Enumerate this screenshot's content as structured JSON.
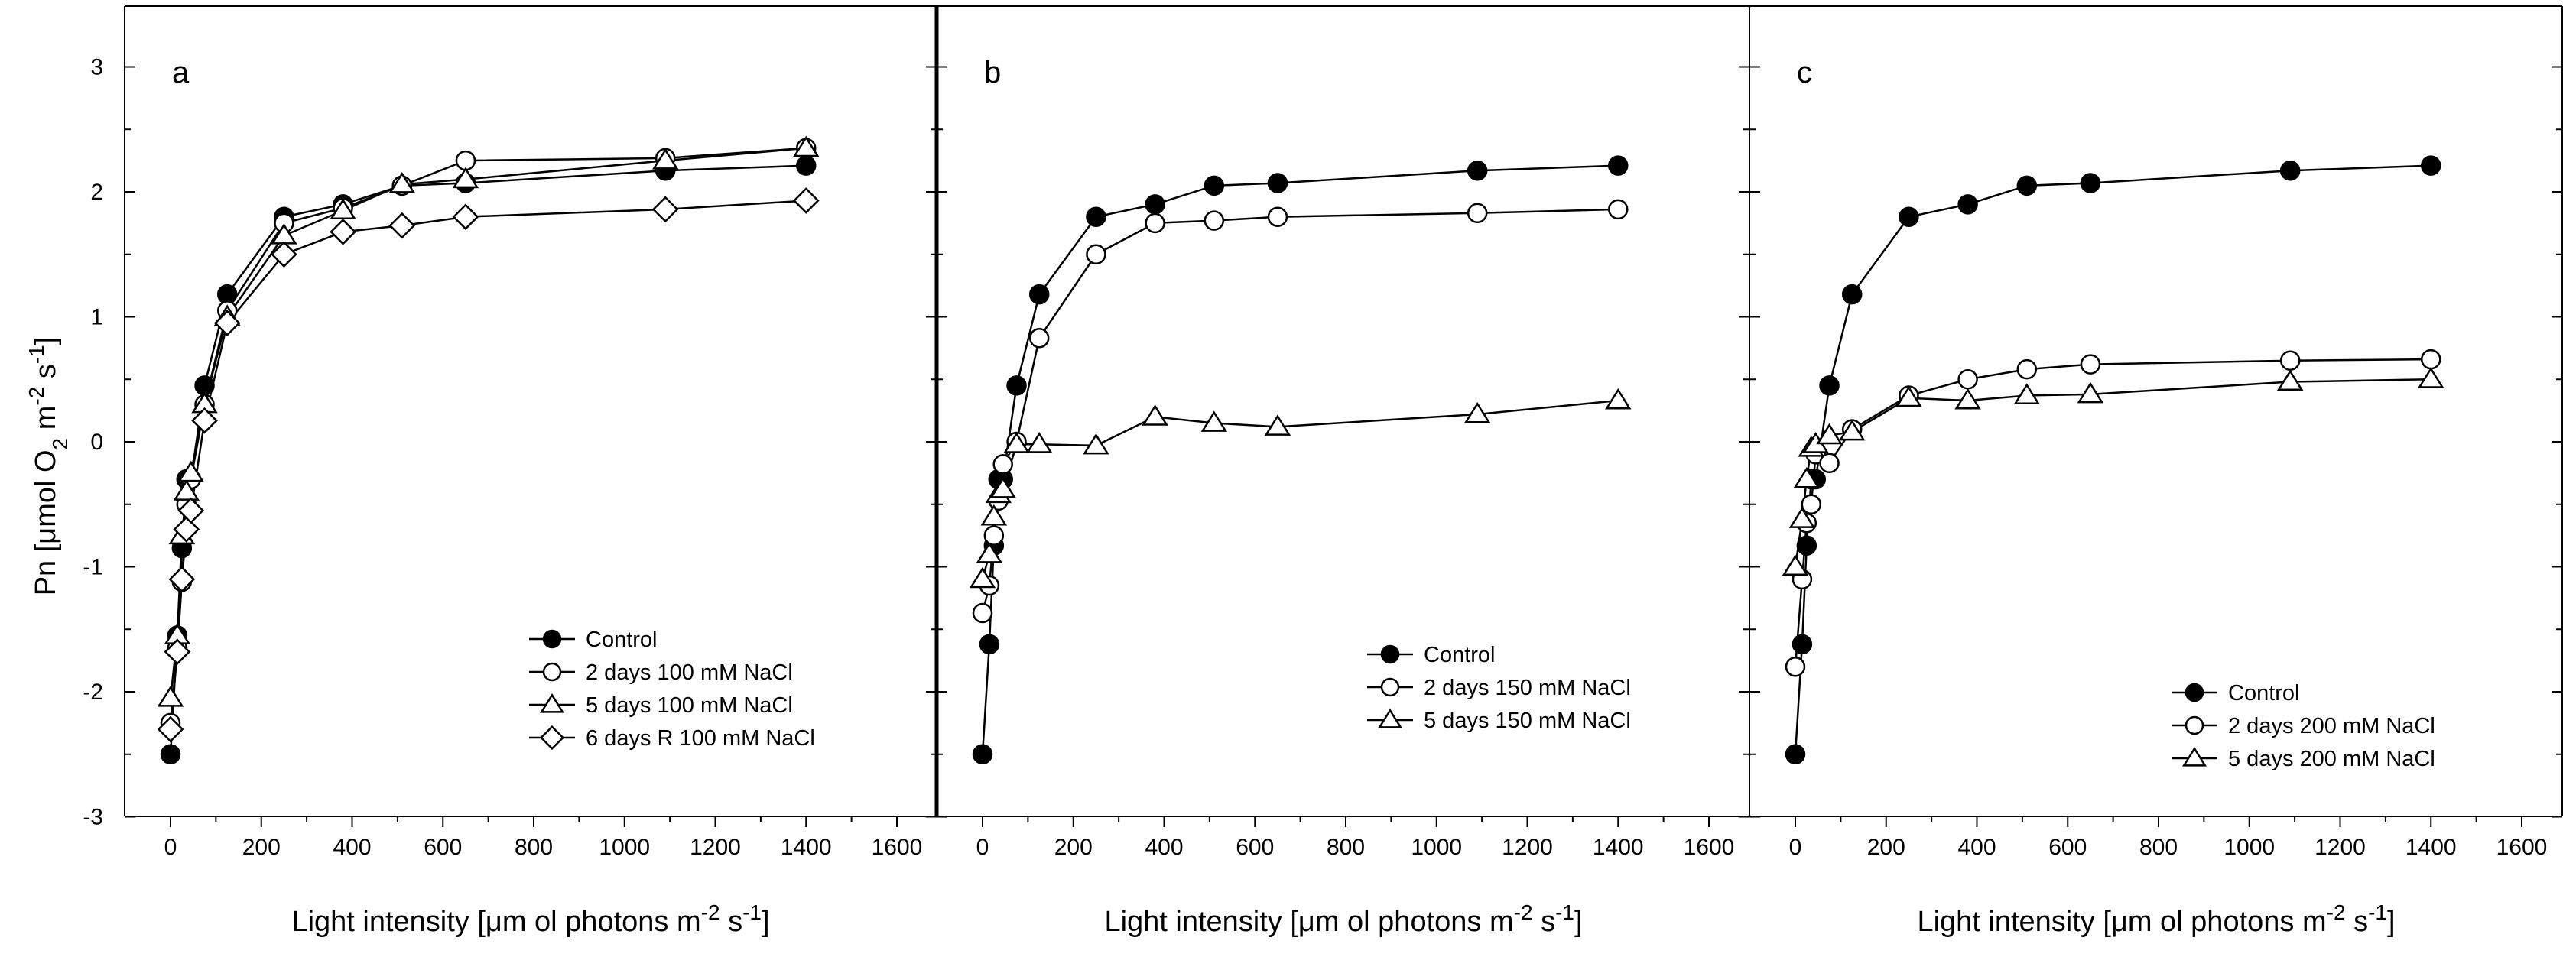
{
  "ylabel": {
    "prefix": "Pn [",
    "mu": "μ",
    "mid": "mol O",
    "sub": "2",
    "mid2": " m",
    "sup1": "-2",
    "mid3": " s",
    "sup2": "-1",
    "end": "]"
  },
  "xlabel": {
    "prefix": "Light intensity [",
    "mu": "μ",
    "mid": "m ol photons m",
    "sup1": "-2",
    "mid2": " s",
    "sup2": "-1",
    "end": "]"
  },
  "chart_data": [
    {
      "type": "line",
      "panel_label": "a",
      "x_ticks": [
        "0",
        "200",
        "400",
        "600",
        "800",
        "1000",
        "1200",
        "1400",
        "1600"
      ],
      "y_ticks": [
        "-3",
        "-2",
        "-1",
        "0",
        "1",
        "2",
        "3"
      ],
      "xlim": [
        -80,
        1680
      ],
      "ylim": [
        -3,
        3.35
      ],
      "legend_position": "bottom-right",
      "series": [
        {
          "name": "Control",
          "marker": "filled-circle",
          "x": [
            0,
            15,
            25,
            35,
            45,
            75,
            125,
            250,
            380,
            510,
            650,
            1090,
            1400
          ],
          "y": [
            -2.5,
            -1.55,
            -0.85,
            -0.3,
            -0.3,
            0.45,
            1.18,
            1.8,
            1.9,
            2.05,
            2.07,
            2.17,
            2.21
          ]
        },
        {
          "name": "2 days 100 mM NaCl",
          "marker": "open-circle",
          "x": [
            0,
            15,
            25,
            35,
            45,
            75,
            125,
            250,
            380,
            510,
            650,
            1090,
            1400
          ],
          "y": [
            -2.25,
            -1.65,
            -1.12,
            -0.5,
            -0.3,
            0.3,
            1.05,
            1.75,
            1.87,
            2.05,
            2.25,
            2.27,
            2.35
          ]
        },
        {
          "name": "5 days 100 mM NaCl",
          "marker": "open-triangle",
          "x": [
            0,
            15,
            25,
            35,
            45,
            75,
            125,
            250,
            380,
            510,
            650,
            1090,
            1400
          ],
          "y": [
            -2.05,
            -1.55,
            -0.75,
            -0.4,
            -0.25,
            0.3,
            1.0,
            1.65,
            1.85,
            2.06,
            2.1,
            2.25,
            2.35
          ]
        },
        {
          "name": "6 days R 100 mM NaCl",
          "marker": "open-diamond",
          "x": [
            0,
            15,
            25,
            35,
            45,
            75,
            125,
            250,
            380,
            510,
            650,
            1090,
            1400
          ],
          "y": [
            -2.3,
            -1.68,
            -1.1,
            -0.7,
            -0.55,
            0.17,
            0.95,
            1.5,
            1.68,
            1.73,
            1.8,
            1.86,
            1.93
          ]
        }
      ]
    },
    {
      "type": "line",
      "panel_label": "b",
      "x_ticks": [
        "0",
        "200",
        "400",
        "600",
        "800",
        "1000",
        "1200",
        "1400",
        "1600"
      ],
      "y_ticks": [],
      "xlim": [
        -80,
        1680
      ],
      "ylim": [
        -3,
        3.35
      ],
      "legend_position": "bottom-right",
      "series": [
        {
          "name": "Control",
          "marker": "filled-circle",
          "x": [
            0,
            15,
            25,
            35,
            45,
            75,
            125,
            250,
            380,
            510,
            650,
            1090,
            1400
          ],
          "y": [
            -2.5,
            -1.62,
            -0.83,
            -0.3,
            -0.3,
            0.45,
            1.18,
            1.8,
            1.9,
            2.05,
            2.07,
            2.17,
            2.21
          ]
        },
        {
          "name": "2 days 150 mM NaCl",
          "marker": "open-circle",
          "x": [
            0,
            15,
            25,
            35,
            45,
            75,
            125,
            250,
            380,
            510,
            650,
            1090,
            1400
          ],
          "y": [
            -1.37,
            -1.15,
            -0.75,
            -0.47,
            -0.18,
            0.0,
            0.83,
            1.5,
            1.75,
            1.77,
            1.8,
            1.83,
            1.86
          ]
        },
        {
          "name": "5 days 150 mM NaCl",
          "marker": "open-triangle",
          "x": [
            0,
            15,
            25,
            35,
            45,
            75,
            125,
            250,
            380,
            510,
            650,
            1090,
            1400
          ],
          "y": [
            -1.1,
            -0.9,
            -0.6,
            -0.42,
            -0.38,
            -0.02,
            -0.02,
            -0.03,
            0.2,
            0.15,
            0.12,
            0.22,
            0.33
          ]
        }
      ]
    },
    {
      "type": "line",
      "panel_label": "c",
      "x_ticks": [
        "0",
        "200",
        "400",
        "600",
        "800",
        "1000",
        "1200",
        "1400",
        "1600"
      ],
      "y_ticks": [],
      "xlim": [
        -80,
        1680
      ],
      "ylim": [
        -3,
        3.35
      ],
      "legend_position": "bottom-right",
      "series": [
        {
          "name": "Control",
          "marker": "filled-circle",
          "x": [
            0,
            15,
            25,
            35,
            45,
            75,
            125,
            250,
            380,
            510,
            650,
            1090,
            1400
          ],
          "y": [
            -2.5,
            -1.62,
            -0.83,
            -0.3,
            -0.3,
            0.45,
            1.18,
            1.8,
            1.9,
            2.05,
            2.07,
            2.17,
            2.21
          ]
        },
        {
          "name": "2 days 200 mM NaCl",
          "marker": "open-circle",
          "x": [
            0,
            15,
            25,
            35,
            45,
            75,
            125,
            250,
            380,
            510,
            650,
            1090,
            1400
          ],
          "y": [
            -1.8,
            -1.1,
            -0.65,
            -0.5,
            -0.1,
            -0.17,
            0.1,
            0.37,
            0.5,
            0.58,
            0.62,
            0.65,
            0.66
          ]
        },
        {
          "name": "5 days 200 mM NaCl",
          "marker": "open-triangle",
          "x": [
            0,
            15,
            25,
            35,
            45,
            75,
            125,
            250,
            380,
            510,
            650,
            1090,
            1400
          ],
          "y": [
            -1.0,
            -0.62,
            -0.3,
            -0.05,
            -0.02,
            0.05,
            0.08,
            0.35,
            0.33,
            0.37,
            0.38,
            0.48,
            0.5
          ]
        }
      ]
    }
  ]
}
